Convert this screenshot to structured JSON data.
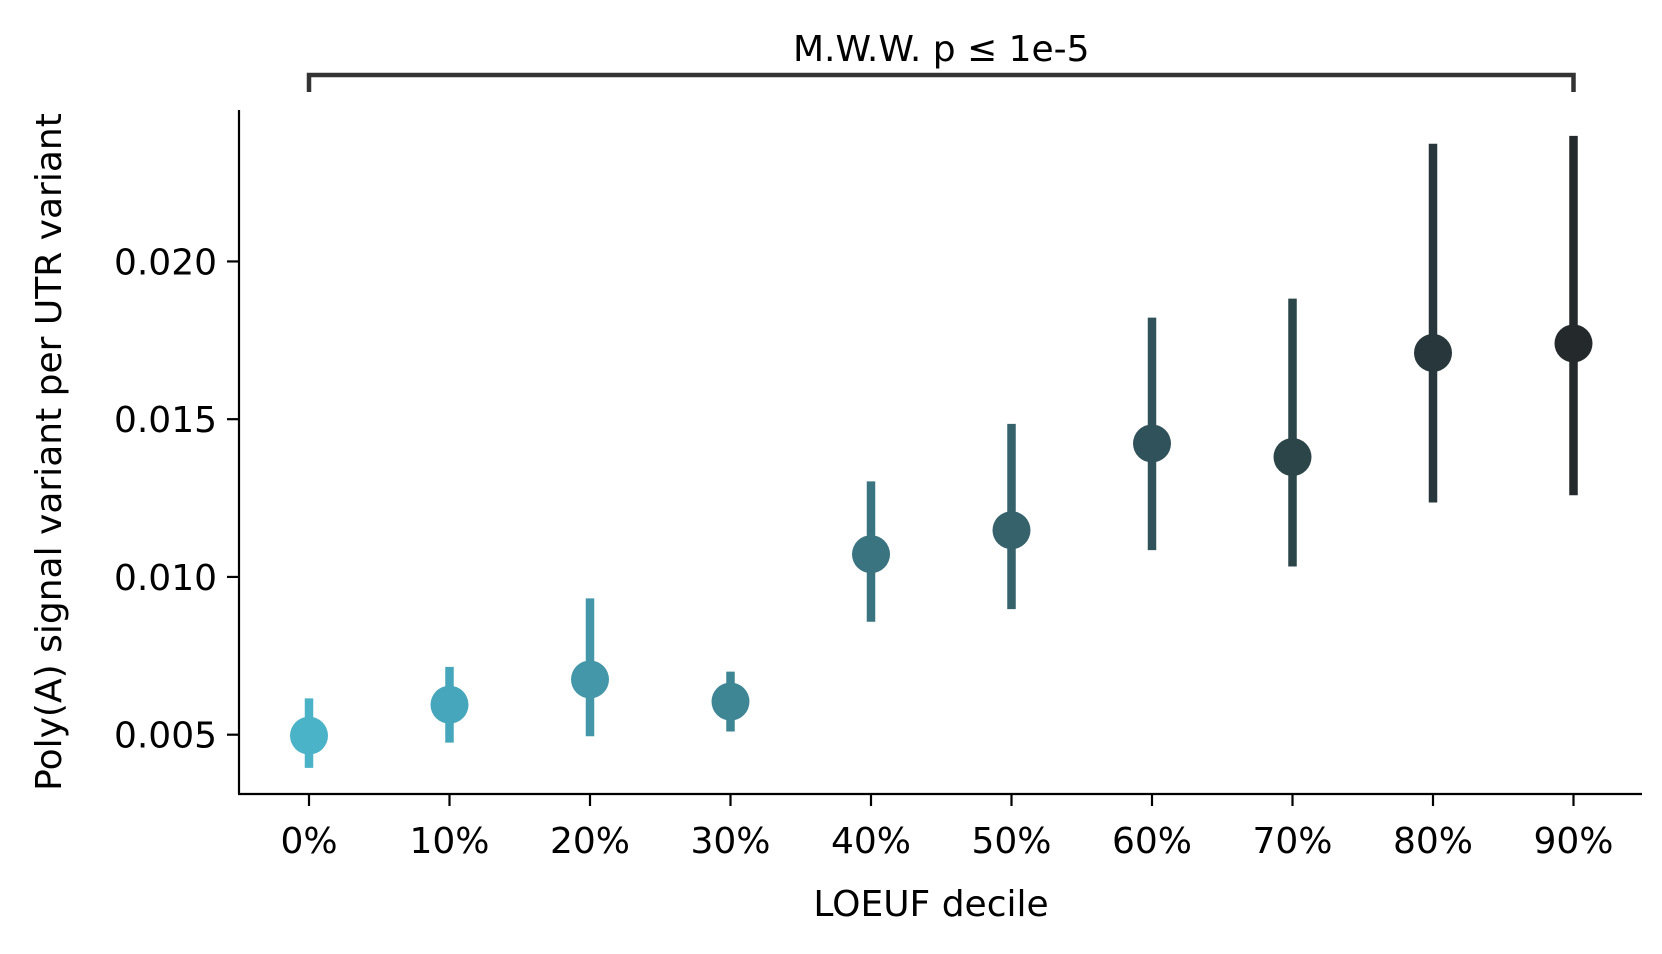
{
  "chart_data": {
    "type": "pointplot",
    "categories": [
      "0%",
      "10%",
      "20%",
      "30%",
      "40%",
      "50%",
      "60%",
      "70%",
      "80%",
      "90%"
    ],
    "series": [
      {
        "values": [
          0.00497,
          0.00595,
          0.00675,
          0.00605,
          0.01072,
          0.01148,
          0.01423,
          0.0138,
          0.0171,
          0.0174
        ],
        "err_low": [
          0.00395,
          0.00475,
          0.00495,
          0.0051,
          0.00858,
          0.00898,
          0.01085,
          0.01033,
          0.01236,
          0.01259
        ],
        "err_high": [
          0.00615,
          0.00715,
          0.00932,
          0.007,
          0.01303,
          0.01485,
          0.01822,
          0.01882,
          0.02373,
          0.02398
        ],
        "colors": [
          "#4bb3c8",
          "#46a6bb",
          "#4497a9",
          "#3f8694",
          "#3a7480",
          "#36626c",
          "#30525a",
          "#2c4549",
          "#28373b",
          "#24292b"
        ]
      }
    ],
    "xlabel": "LOEUF decile",
    "ylabel": "Poly(A) signal variant per UTR variant",
    "yticks": [
      0.005,
      0.01,
      0.015,
      0.02
    ],
    "ytick_labels": [
      "0.005",
      "0.010",
      "0.015",
      "0.020"
    ],
    "ylim": [
      0.00312,
      0.0248
    ],
    "grid": false,
    "legend": "none",
    "annotation": {
      "text": "M.W.W. p ≤ 1e-5",
      "from_category": "0%",
      "to_category": "90%"
    }
  }
}
